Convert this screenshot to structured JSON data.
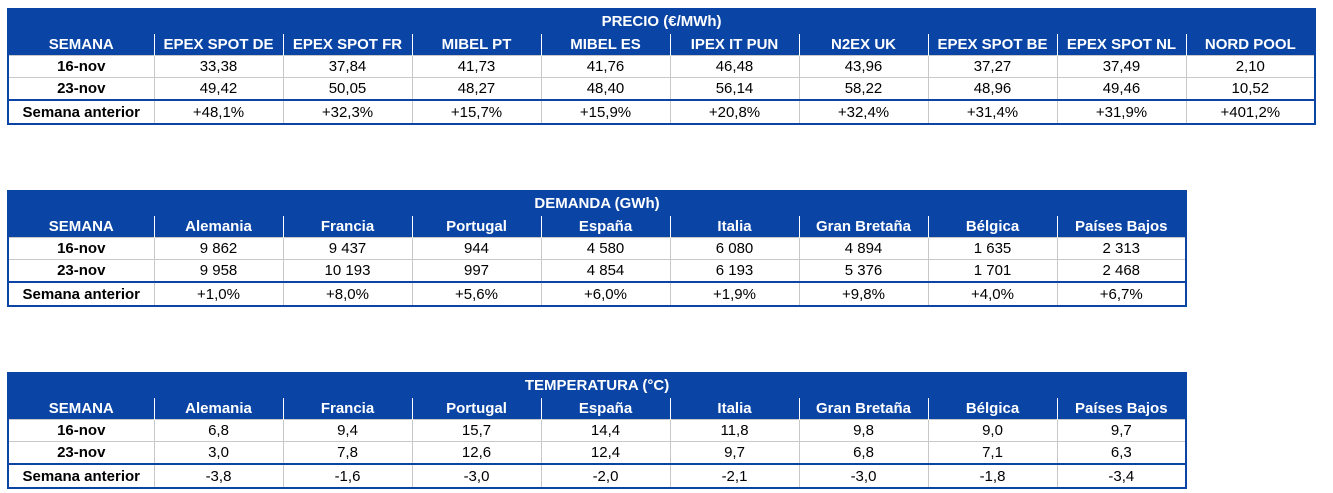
{
  "colors": {
    "header_bg": "#0a45a6",
    "header_text": "#ffffff",
    "border": "#0a45a6"
  },
  "chart_data": [
    {
      "type": "table",
      "title": "PRECIO (€/MWh)",
      "columns": [
        "SEMANA",
        "EPEX SPOT DE",
        "EPEX SPOT FR",
        "MIBEL PT",
        "MIBEL ES",
        "IPEX IT PUN",
        "N2EX UK",
        "EPEX SPOT BE",
        "EPEX SPOT NL",
        "NORD POOL"
      ],
      "rows": [
        [
          "16-nov",
          "33,38",
          "37,84",
          "41,73",
          "41,76",
          "46,48",
          "43,96",
          "37,27",
          "37,49",
          "2,10"
        ],
        [
          "23-nov",
          "49,42",
          "50,05",
          "48,27",
          "48,40",
          "56,14",
          "58,22",
          "48,96",
          "49,46",
          "10,52"
        ],
        [
          "Semana anterior",
          "+48,1%",
          "+32,3%",
          "+15,7%",
          "+15,9%",
          "+20,8%",
          "+32,4%",
          "+31,4%",
          "+31,9%",
          "+401,2%"
        ]
      ]
    },
    {
      "type": "table",
      "title": "DEMANDA (GWh)",
      "columns": [
        "SEMANA",
        "Alemania",
        "Francia",
        "Portugal",
        "España",
        "Italia",
        "Gran Bretaña",
        "Bélgica",
        "Países Bajos"
      ],
      "rows": [
        [
          "16-nov",
          "9 862",
          "9 437",
          "944",
          "4 580",
          "6 080",
          "4 894",
          "1 635",
          "2 313"
        ],
        [
          "23-nov",
          "9 958",
          "10 193",
          "997",
          "4 854",
          "6 193",
          "5 376",
          "1 701",
          "2 468"
        ],
        [
          "Semana anterior",
          "+1,0%",
          "+8,0%",
          "+5,6%",
          "+6,0%",
          "+1,9%",
          "+9,8%",
          "+4,0%",
          "+6,7%"
        ]
      ]
    },
    {
      "type": "table",
      "title": "TEMPERATURA (°C)",
      "columns": [
        "SEMANA",
        "Alemania",
        "Francia",
        "Portugal",
        "España",
        "Italia",
        "Gran Bretaña",
        "Bélgica",
        "Países Bajos"
      ],
      "rows": [
        [
          "16-nov",
          "6,8",
          "9,4",
          "15,7",
          "14,4",
          "11,8",
          "9,8",
          "9,0",
          "9,7"
        ],
        [
          "23-nov",
          "3,0",
          "7,8",
          "12,6",
          "12,4",
          "9,7",
          "6,8",
          "7,1",
          "6,3"
        ],
        [
          "Semana anterior",
          "-3,8",
          "-1,6",
          "-3,0",
          "-2,0",
          "-2,1",
          "-3,0",
          "-1,8",
          "-3,4"
        ]
      ]
    }
  ]
}
